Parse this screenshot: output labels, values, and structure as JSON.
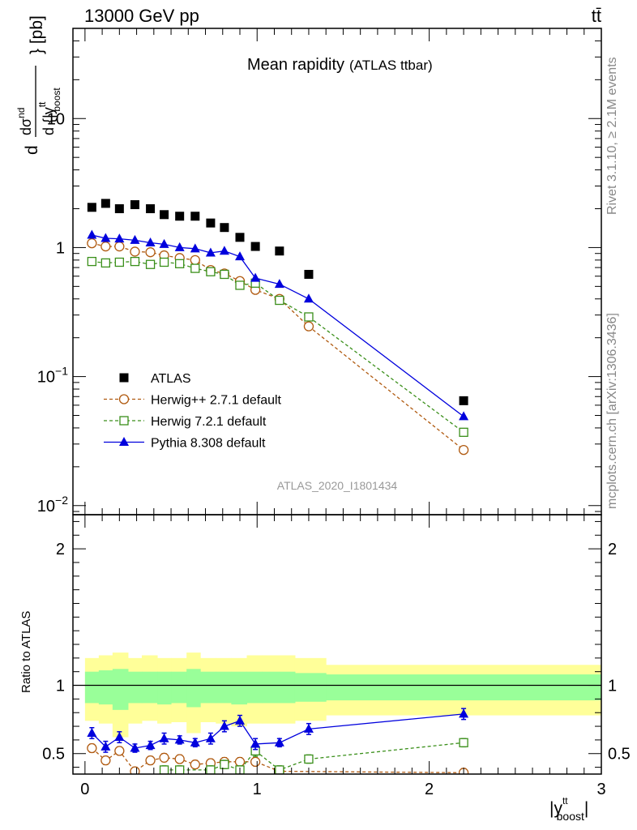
{
  "header": {
    "energy": "13000 GeV pp",
    "process": "tt̄"
  },
  "side_labels": {
    "rivet": "Rivet 3.1.10, ≥ 2.1M events",
    "mcplots": "mcplots.cern.ch [arXiv:1306.3436]"
  },
  "colors": {
    "atlas": "#000000",
    "herwigpp": "#b05a10",
    "herwig7": "#3a8f1a",
    "pythia": "#0000dd",
    "band_outer": "#ffff99",
    "band_inner": "#99ff99"
  },
  "chart_data": [
    {
      "type": "scatter",
      "panel": "main",
      "title": "Mean rapidity",
      "subtitle": "(ATLAS ttbar)",
      "watermark": "ATLAS_2020_I1801434",
      "ylabel_parts": {
        "d": "d",
        "sigma": "σ",
        "sup": "nd",
        "den": "d {|y",
        "tt": "tt",
        "boost": "boost",
        "unit": "} [pb]"
      },
      "yscale": "log",
      "ylim": [
        0.0085,
        50
      ],
      "xlim": [
        -0.07,
        3.0
      ],
      "ytick_labels": [
        {
          "value": 10,
          "base": "10",
          "exp": ""
        },
        {
          "value": 1,
          "base": "1",
          "exp": ""
        },
        {
          "value": 0.1,
          "base": "10",
          "exp": "−1"
        },
        {
          "value": 0.01,
          "base": "10",
          "exp": "−2"
        }
      ],
      "legend_placement": "lower-left",
      "series": [
        {
          "name": "ATLAS",
          "style": "atlas",
          "x": [
            0.04,
            0.12,
            0.2,
            0.29,
            0.38,
            0.46,
            0.55,
            0.64,
            0.73,
            0.81,
            0.9,
            0.99,
            1.13,
            1.3,
            2.2
          ],
          "y": [
            2.05,
            2.2,
            2.0,
            2.15,
            2.0,
            1.8,
            1.75,
            1.75,
            1.55,
            1.43,
            1.2,
            1.02,
            0.94,
            0.62,
            0.065
          ]
        },
        {
          "name": "Herwig++ 2.7.1 default",
          "style": "herwigpp",
          "x": [
            0.04,
            0.12,
            0.2,
            0.29,
            0.38,
            0.46,
            0.55,
            0.64,
            0.73,
            0.81,
            0.9,
            0.99,
            1.13,
            1.3,
            2.2
          ],
          "y": [
            1.08,
            1.02,
            1.02,
            0.93,
            0.92,
            0.87,
            0.83,
            0.8,
            0.67,
            0.63,
            0.55,
            0.47,
            0.4,
            0.245,
            0.027
          ]
        },
        {
          "name": "Herwig 7.2.1 default",
          "style": "herwig7",
          "x": [
            0.04,
            0.12,
            0.2,
            0.29,
            0.38,
            0.46,
            0.55,
            0.64,
            0.73,
            0.81,
            0.9,
            0.99,
            1.13,
            1.3,
            2.2
          ],
          "y": [
            0.78,
            0.76,
            0.77,
            0.78,
            0.74,
            0.77,
            0.75,
            0.69,
            0.65,
            0.62,
            0.51,
            0.53,
            0.39,
            0.29,
            0.037
          ]
        },
        {
          "name": "Pythia 8.308 default",
          "style": "pythia",
          "x": [
            0.04,
            0.12,
            0.2,
            0.29,
            0.38,
            0.46,
            0.55,
            0.64,
            0.73,
            0.81,
            0.9,
            0.99,
            1.13,
            1.3,
            2.2
          ],
          "y": [
            1.25,
            1.18,
            1.17,
            1.14,
            1.09,
            1.06,
            1.0,
            0.98,
            0.91,
            0.94,
            0.85,
            0.58,
            0.52,
            0.4,
            0.049
          ]
        }
      ]
    },
    {
      "type": "scatter",
      "panel": "ratio",
      "ylabel": "Ratio to ATLAS",
      "ylim": [
        0.35,
        2.25
      ],
      "xlim": [
        -0.07,
        3.0
      ],
      "ytick_labels": [
        "0.5",
        "1",
        "2"
      ],
      "xtick_labels": [
        "0",
        "1",
        "2",
        "3"
      ],
      "xlabel_parts": {
        "pre": "|y",
        "tt": "tt",
        "boost": "boost",
        "post": "|"
      },
      "bands": {
        "edges": [
          0.0,
          0.08,
          0.16,
          0.25,
          0.33,
          0.42,
          0.5,
          0.59,
          0.67,
          0.76,
          0.85,
          0.94,
          1.03,
          1.22,
          1.4,
          3.0
        ],
        "outer": [
          [
            0.74,
            1.2
          ],
          [
            0.72,
            1.22
          ],
          [
            0.62,
            1.24
          ],
          [
            0.72,
            1.2
          ],
          [
            0.74,
            1.22
          ],
          [
            0.72,
            1.2
          ],
          [
            0.73,
            1.2
          ],
          [
            0.65,
            1.24
          ],
          [
            0.73,
            1.2
          ],
          [
            0.72,
            1.2
          ],
          [
            0.7,
            1.2
          ],
          [
            0.72,
            1.22
          ],
          [
            0.72,
            1.22
          ],
          [
            0.74,
            1.2
          ],
          [
            0.78,
            1.15
          ]
        ],
        "inner": [
          [
            0.87,
            1.1
          ],
          [
            0.86,
            1.11
          ],
          [
            0.82,
            1.12
          ],
          [
            0.87,
            1.1
          ],
          [
            0.87,
            1.1
          ],
          [
            0.86,
            1.1
          ],
          [
            0.87,
            1.1
          ],
          [
            0.84,
            1.12
          ],
          [
            0.87,
            1.1
          ],
          [
            0.87,
            1.1
          ],
          [
            0.86,
            1.1
          ],
          [
            0.87,
            1.1
          ],
          [
            0.87,
            1.1
          ],
          [
            0.88,
            1.09
          ],
          [
            0.89,
            1.08
          ]
        ]
      },
      "series": [
        {
          "name": "Herwig++ 2.7.1 default",
          "style": "herwigpp",
          "x": [
            0.04,
            0.12,
            0.2,
            0.29,
            0.38,
            0.46,
            0.55,
            0.64,
            0.73,
            0.81,
            0.9,
            0.99,
            1.13,
            2.2
          ],
          "y": [
            0.54,
            0.45,
            0.52,
            0.37,
            0.45,
            0.47,
            0.46,
            0.42,
            0.43,
            0.44,
            0.44,
            0.44,
            0.37,
            0.36
          ],
          "err": [
            0.03,
            0.03,
            0.03,
            0.03,
            0.03,
            0.03,
            0.03,
            0.03,
            0.03,
            0.03,
            0.03,
            0.03,
            0.03,
            0.03
          ]
        },
        {
          "name": "Herwig 7.2.1 default",
          "style": "herwig7",
          "x": [
            0.46,
            0.55,
            0.73,
            0.81,
            0.9,
            0.99,
            1.13,
            1.3,
            2.2
          ],
          "y": [
            0.38,
            0.38,
            0.38,
            0.42,
            0.38,
            0.52,
            0.38,
            0.46,
            0.58
          ],
          "err": [
            0.03,
            0.03,
            0.03,
            0.03,
            0.03,
            0.04,
            0.03,
            0.03,
            0.03
          ]
        },
        {
          "name": "Pythia 8.308 default",
          "style": "pythia",
          "x": [
            0.04,
            0.12,
            0.2,
            0.29,
            0.38,
            0.46,
            0.55,
            0.64,
            0.73,
            0.81,
            0.9,
            0.99,
            1.13,
            1.3,
            2.2
          ],
          "y": [
            0.65,
            0.55,
            0.62,
            0.54,
            0.56,
            0.61,
            0.6,
            0.58,
            0.61,
            0.7,
            0.74,
            0.57,
            0.58,
            0.68,
            0.79
          ],
          "err": [
            0.04,
            0.04,
            0.04,
            0.03,
            0.03,
            0.04,
            0.03,
            0.03,
            0.04,
            0.04,
            0.04,
            0.04,
            0.03,
            0.04,
            0.04
          ]
        }
      ]
    }
  ]
}
